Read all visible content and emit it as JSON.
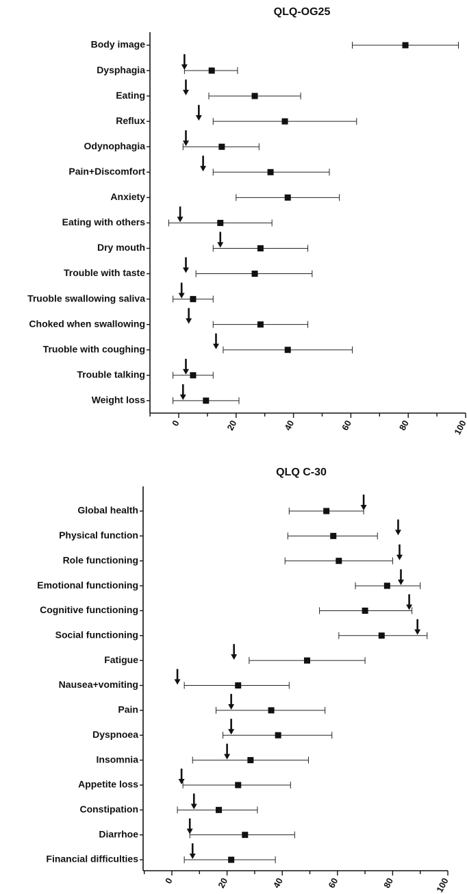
{
  "chart_data": [
    {
      "type": "scatter",
      "title": "QLQ-OG25",
      "xlim": [
        -10,
        100
      ],
      "xticks": [
        0,
        20,
        40,
        60,
        80,
        100
      ],
      "grid": false,
      "categories": [
        "Body image",
        "Dysphagia",
        "Eating",
        "Reflux",
        "Odynophagia",
        "Pain+Discomfort",
        "Anxiety",
        "Eating with others",
        "Dry mouth",
        "Trouble with taste",
        "Truoble swallowing saliva",
        "Choked when swallowing",
        "Truoble with coughing",
        "Trouble talking",
        "Weight loss"
      ],
      "series": [
        {
          "marker": "square",
          "mean": [
            79,
            11.5,
            26.5,
            37,
            15,
            32,
            38,
            14.5,
            28.5,
            26.5,
            5,
            28.5,
            38,
            5,
            9.5
          ],
          "lower": [
            60.5,
            2,
            10.5,
            12,
            1.5,
            12,
            20,
            -3.5,
            12,
            6,
            -2,
            12,
            15.5,
            -2,
            -2
          ],
          "upper": [
            97.5,
            20.5,
            42.5,
            62,
            28,
            52.5,
            56,
            32.5,
            45,
            46.5,
            12,
            45,
            60.5,
            12,
            21
          ]
        },
        {
          "marker": "arrow",
          "values": [
            null,
            2,
            2.5,
            7,
            2.5,
            8.5,
            null,
            0.5,
            14.5,
            2.5,
            1,
            3.5,
            13,
            2.5,
            1.5
          ]
        }
      ]
    },
    {
      "type": "scatter",
      "title": "QLQ C-30",
      "xlim": [
        -10,
        100
      ],
      "xticks": [
        0,
        20,
        40,
        60,
        80,
        100
      ],
      "grid": false,
      "categories": [
        "Global health",
        "Physical function",
        "Role functioning",
        "Emotional functioning",
        "Cognitive functioning",
        "Social functioning",
        "Fatigue",
        "Nausea+vomiting",
        "Pain",
        "Dyspnoea",
        "Insomnia",
        "Appetite loss",
        "Constipation",
        "Diarrhoe",
        "Financial difficulties"
      ],
      "series": [
        {
          "marker": "square",
          "mean": [
            56,
            58.5,
            60.5,
            78,
            70,
            76,
            49,
            24,
            36,
            38.5,
            28.5,
            24,
            17,
            26.5,
            21.5
          ],
          "lower": [
            42.5,
            42,
            41,
            66.5,
            53.5,
            60.5,
            28,
            4.5,
            16,
            18.5,
            7.5,
            4,
            2,
            6.5,
            4.5
          ],
          "upper": [
            69.5,
            74.5,
            80,
            90,
            87,
            92.5,
            70,
            42.5,
            55.5,
            58,
            49.5,
            43,
            31,
            44.5,
            37.5
          ]
        },
        {
          "marker": "arrow",
          "values": [
            69.5,
            82,
            82.5,
            83,
            86,
            89,
            22.5,
            2,
            21.5,
            21.5,
            20,
            3.5,
            8,
            6.5,
            7.5
          ]
        }
      ]
    }
  ]
}
